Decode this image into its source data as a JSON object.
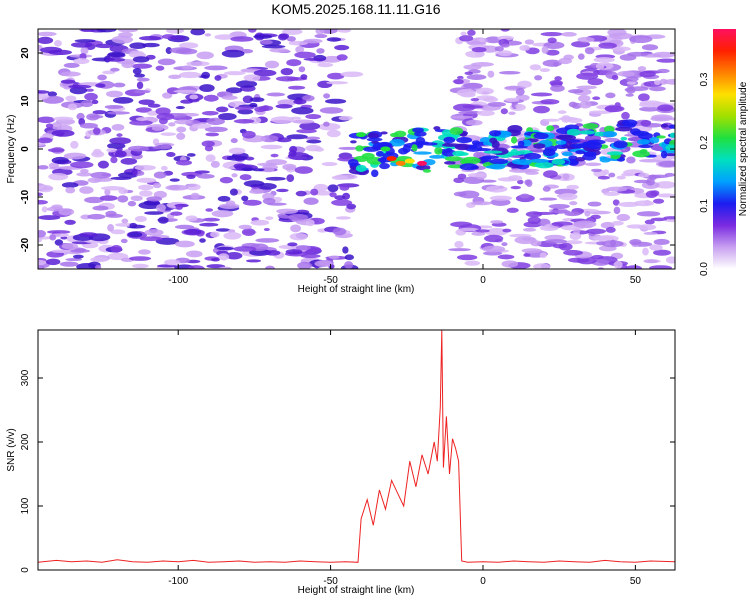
{
  "title": "KOM5.2025.168.11.11.G16",
  "chart_data": [
    {
      "type": "heatmap",
      "xlabel": "Height of straight line (km)",
      "ylabel": "Frequency (Hz)",
      "xlim": [
        -146,
        63
      ],
      "ylim": [
        -25,
        25
      ],
      "x_ticks": [
        "-100",
        "-50",
        "0",
        "50"
      ],
      "x_tick_values": [
        -100,
        -50,
        0,
        50
      ],
      "y_ticks": [
        "20",
        "10",
        "0",
        "-10",
        "-20"
      ],
      "y_tick_values": [
        20,
        10,
        0,
        -10,
        -20
      ],
      "gap_range_km": [
        -43,
        -8
      ],
      "colorbar": {
        "label": "Normalized spectral amplitude",
        "range": [
          0.0,
          0.38
        ],
        "ticks": [
          "0.0",
          "0.1",
          "0.2",
          "0.3"
        ],
        "tick_values": [
          0.0,
          0.1,
          0.2,
          0.3
        ],
        "colors": [
          "#ffffff",
          "#c8a0f0",
          "#7b2be0",
          "#1c1cf0",
          "#00a0ff",
          "#00e0c0",
          "#20e040",
          "#a0e000",
          "#ffe000",
          "#ff8000",
          "#ff2000",
          "#ff1060"
        ]
      }
    },
    {
      "type": "line",
      "xlabel": "Height of straight line (km)",
      "ylabel": "SNR (v/v)",
      "xlim": [
        -146,
        63
      ],
      "ylim": [
        0,
        375
      ],
      "x_ticks": [
        "-100",
        "-50",
        "0",
        "50"
      ],
      "x_tick_values": [
        -100,
        -50,
        0,
        50
      ],
      "y_ticks": [
        "0",
        "100",
        "200",
        "300"
      ],
      "y_tick_values": [
        0,
        100,
        200,
        300
      ],
      "line_color": "#ee2222",
      "series": [
        {
          "x": [
            -146,
            -140,
            -135,
            -130,
            -125,
            -120,
            -115,
            -110,
            -105,
            -100,
            -95,
            -90,
            -85,
            -80,
            -75,
            -70,
            -65,
            -60,
            -55,
            -50,
            -45,
            -41,
            -40,
            -38,
            -36,
            -34,
            -32,
            -30,
            -28,
            -26,
            -24,
            -22,
            -20,
            -18,
            -16,
            -15,
            -14,
            -13.5,
            -13,
            -12,
            -11,
            -10,
            -9,
            -8,
            -7,
            -5,
            0,
            5,
            10,
            15,
            20,
            25,
            30,
            35,
            40,
            45,
            50,
            55,
            63
          ],
          "y": [
            12,
            15,
            13,
            14,
            12,
            16,
            13,
            12,
            14,
            13,
            15,
            12,
            13,
            14,
            12,
            13,
            12,
            14,
            13,
            12,
            13,
            12,
            80,
            110,
            70,
            125,
            95,
            140,
            120,
            100,
            170,
            130,
            180,
            150,
            200,
            170,
            255,
            375,
            160,
            240,
            150,
            205,
            190,
            170,
            14,
            12,
            13,
            12,
            14,
            13,
            12,
            14,
            13,
            12,
            15,
            13,
            12,
            14,
            13
          ]
        }
      ]
    }
  ]
}
